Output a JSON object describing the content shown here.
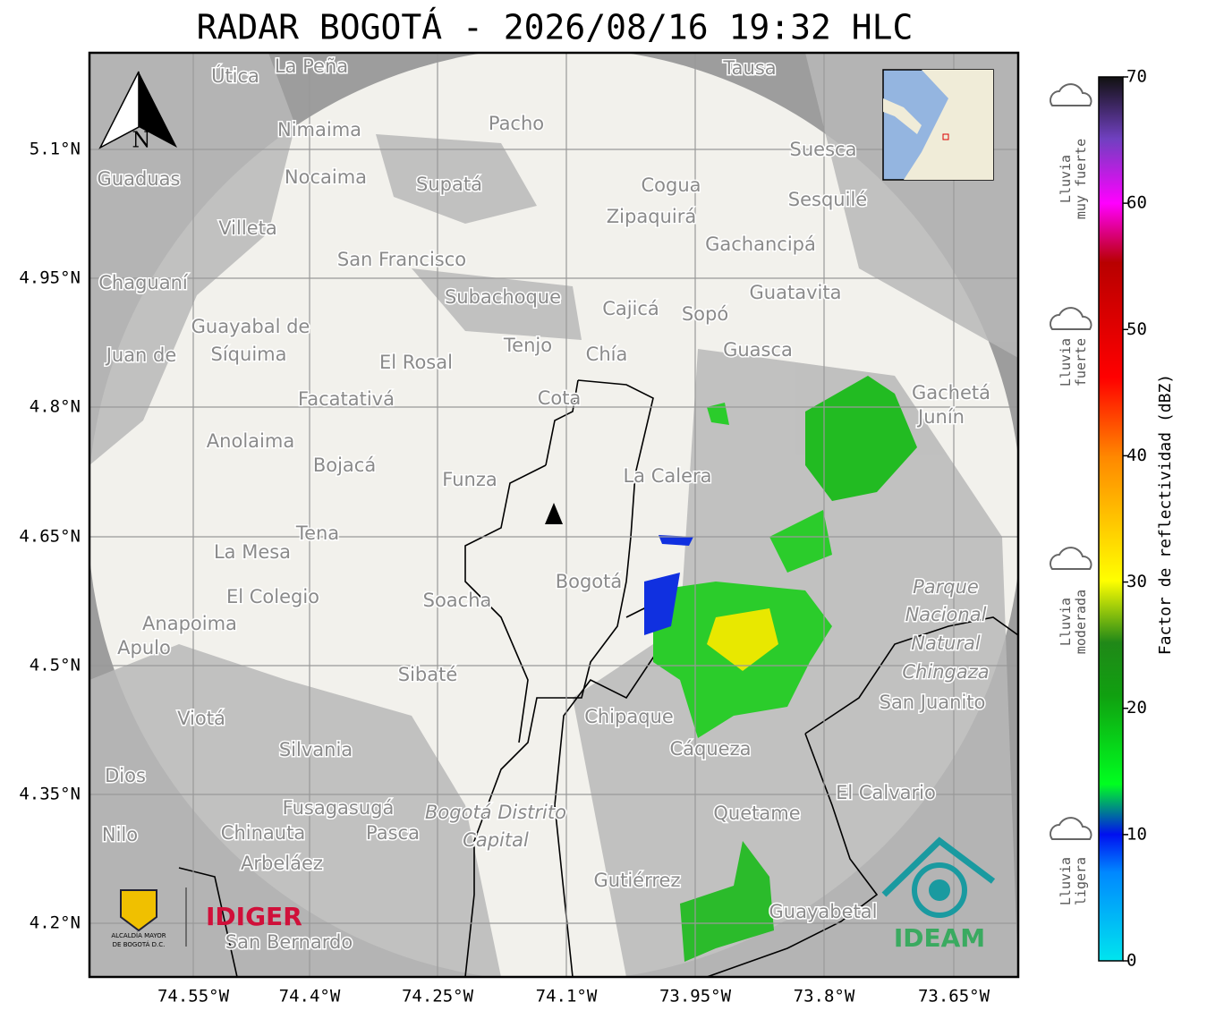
{
  "title": "RADAR BOGOTÁ - 2026/08/16 19:32 HLC",
  "map": {
    "xticks": [
      "74.55°W",
      "74.4°W",
      "74.25°W",
      "74.1°W",
      "73.95°W",
      "73.8°W",
      "73.65°W"
    ],
    "yticks": [
      "5.1°N",
      "4.95°N",
      "4.8°N",
      "4.65°N",
      "4.5°N",
      "4.35°N",
      "4.2°N"
    ],
    "north": "N",
    "places": [
      "La Peña",
      "Útica",
      "Tausa",
      "Pacho",
      "Nimaima",
      "Suesca",
      "Guaduas",
      "Nocaima",
      "Supatá",
      "Cogua",
      "Sesquilé",
      "Zipaquirá",
      "Villeta",
      "Gachancipá",
      "San Francisco",
      "Chaguaní",
      "Guatavita",
      "Subachoque",
      "Cajicá",
      "Sopó",
      "Guayabal de",
      "Síquima",
      "Tenjo",
      "Chía",
      "Guasca",
      "El Rosal",
      "Juan de",
      "Cota",
      "Facatativá",
      "Gachetá",
      "Junín",
      "Anolaima",
      "Bojacá",
      "La Calera",
      "Funza",
      "Tena",
      "La Mesa",
      "Bogotá",
      "Parque",
      "Nacional",
      "Natural",
      "Chingaza",
      "El Colegio",
      "Soacha",
      "Anapoima",
      "Apulo",
      "Sibaté",
      "San Juanito",
      "Viotá",
      "Chipaque",
      "Silvania",
      "Cáqueza",
      "Dios",
      "El Calvario",
      "Fusagasugá",
      "Bogotá Distrito",
      "Capital",
      "Quetame",
      "Nilo",
      "Chinauta",
      "Pasca",
      "Arbeláez",
      "Gutiérrez",
      "San Bernardo",
      "Guayabetal"
    ]
  },
  "colorbar": {
    "label": "Factor de reflectividad (dBZ)",
    "ticks": [
      0,
      10,
      20,
      30,
      40,
      50,
      60,
      70
    ],
    "categories": [
      [
        "Lluvia",
        "muy fuerte"
      ],
      [
        "Lluvia",
        "fuerte"
      ],
      [
        "Lluvia",
        "moderada"
      ],
      [
        "Lluvia",
        "ligera"
      ]
    ]
  },
  "logos": {
    "alcaldia": [
      "ALCALDÍA MAYOR",
      "DE BOGOTÁ D.C."
    ],
    "idiger": "IDIGER",
    "ideam": "IDEAM"
  }
}
